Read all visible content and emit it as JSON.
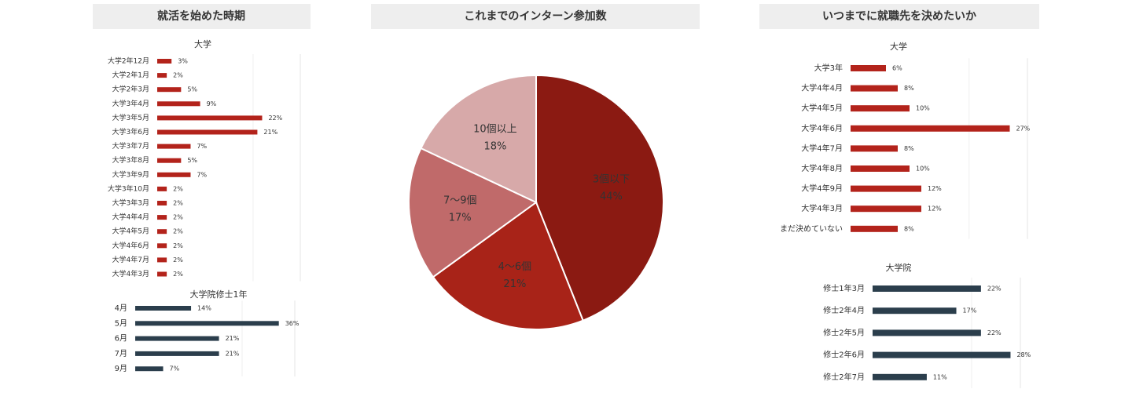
{
  "chart_data": [
    {
      "type": "hbar",
      "title": "就活を始めた時期",
      "subtitle": "大学",
      "categories": [
        "大学2年12月",
        "大学2年1月",
        "大学2年3月",
        "大学3年4月",
        "大学3年5月",
        "大学3年6月",
        "大学3年7月",
        "大学3年8月",
        "大学3年9月",
        "大学3年10月",
        "大学3年3月",
        "大学4年4月",
        "大学4年5月",
        "大学4年6月",
        "大学4年7月",
        "大学4年3月"
      ],
      "values": [
        3,
        2,
        5,
        9,
        22,
        21,
        7,
        5,
        7,
        2,
        2,
        2,
        2,
        2,
        2,
        2
      ],
      "value_labels": [
        "3%",
        "2%",
        "5%",
        "9%",
        "22%",
        "21%",
        "7%",
        "5%",
        "7%",
        "2%",
        "2%",
        "2%",
        "2%",
        "2%",
        "2%",
        "2%"
      ],
      "color": "#b3231b",
      "xlim": [
        0,
        30
      ]
    },
    {
      "type": "hbar",
      "subtitle": "大学院修士1年",
      "categories": [
        "4月",
        "5月",
        "6月",
        "7月",
        "9月"
      ],
      "values": [
        14,
        36,
        21,
        21,
        7
      ],
      "value_labels": [
        "14%",
        "36%",
        "21%",
        "21%",
        "7%"
      ],
      "color": "#2b3e4c",
      "xlim": [
        0,
        40
      ]
    },
    {
      "type": "pie",
      "title": "これまでのインターン参加数",
      "categories": [
        "3個以下",
        "4〜6個",
        "7〜9個",
        "10個以上"
      ],
      "values": [
        44,
        21,
        17,
        18
      ],
      "value_labels": [
        "44%",
        "21%",
        "17%",
        "18%"
      ],
      "colors": [
        "#8b1a12",
        "#a82318",
        "#c06a6a",
        "#d7a9a9"
      ]
    },
    {
      "type": "hbar",
      "title": "いつまでに就職先を決めたいか",
      "subtitle": "大学",
      "categories": [
        "大学3年",
        "大学4年4月",
        "大学4年5月",
        "大学4年6月",
        "大学4年7月",
        "大学4年8月",
        "大学4年9月",
        "大学4年3月",
        "まだ決めていない"
      ],
      "values": [
        6,
        8,
        10,
        27,
        8,
        10,
        12,
        12,
        8
      ],
      "value_labels": [
        "6%",
        "8%",
        "10%",
        "27%",
        "8%",
        "10%",
        "12%",
        "12%",
        "8%"
      ],
      "color": "#b3231b",
      "xlim": [
        0,
        30
      ]
    },
    {
      "type": "hbar",
      "subtitle": "大学院",
      "categories": [
        "修士1年3月",
        "修士2年4月",
        "修士2年5月",
        "修士2年6月",
        "修士2年7月"
      ],
      "values": [
        22,
        17,
        22,
        28,
        11
      ],
      "value_labels": [
        "22%",
        "17%",
        "22%",
        "28%",
        "11%"
      ],
      "color": "#2b3e4c",
      "xlim": [
        0,
        30
      ]
    }
  ]
}
